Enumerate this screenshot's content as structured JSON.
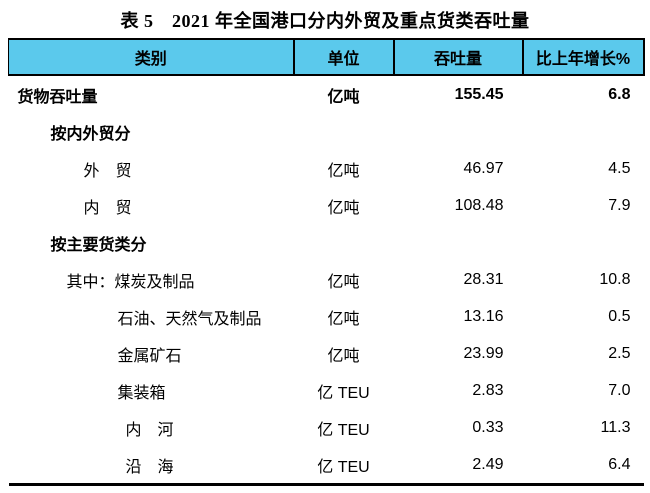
{
  "title": "表 5　2021 年全国港口分内外贸及重点货类吞吐量",
  "colors": {
    "header_bg": "#5bc9ec",
    "border": "#000000",
    "text": "#000000",
    "background": "#ffffff"
  },
  "table": {
    "columns": [
      "类别",
      "单位",
      "吞吐量",
      "比上年增长%"
    ],
    "rows": [
      {
        "category": "货物吞吐量",
        "unit": "亿吨",
        "value": "155.45",
        "growth": "6.8"
      },
      {
        "category": "按内外贸分",
        "unit": "",
        "value": "",
        "growth": ""
      },
      {
        "category": "外　贸",
        "unit": "亿吨",
        "value": "46.97",
        "growth": "4.5"
      },
      {
        "category": "内　贸",
        "unit": "亿吨",
        "value": "108.48",
        "growth": "7.9"
      },
      {
        "category": "按主要货类分",
        "unit": "",
        "value": "",
        "growth": ""
      },
      {
        "category": "其中：煤炭及制品",
        "unit": "亿吨",
        "value": "28.31",
        "growth": "10.8"
      },
      {
        "category": "石油、天然气及制品",
        "unit": "亿吨",
        "value": "13.16",
        "growth": "0.5"
      },
      {
        "category": "金属矿石",
        "unit": "亿吨",
        "value": "23.99",
        "growth": "2.5"
      },
      {
        "category": "集装箱",
        "unit": "亿 TEU",
        "value": "2.83",
        "growth": "7.0"
      },
      {
        "category": "内　河",
        "unit": "亿 TEU",
        "value": "0.33",
        "growth": "11.3"
      },
      {
        "category": "沿　海",
        "unit": "亿 TEU",
        "value": "2.49",
        "growth": "6.4"
      }
    ]
  }
}
